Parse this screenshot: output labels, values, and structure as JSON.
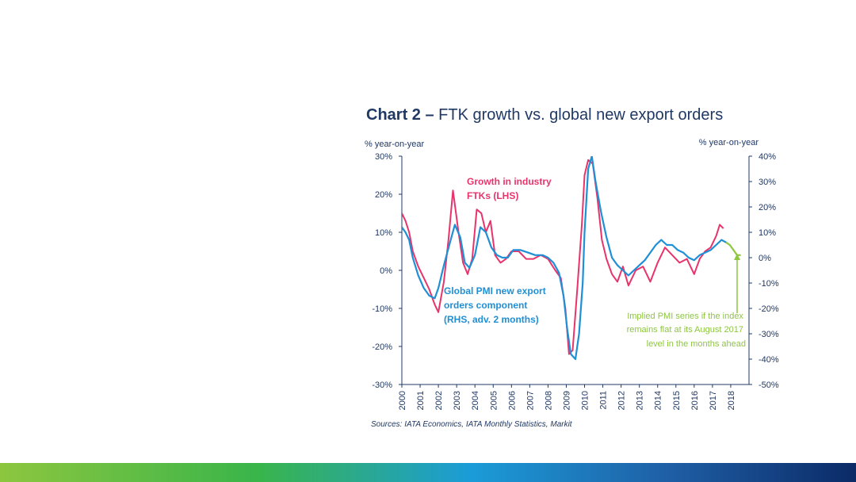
{
  "chart_data": {
    "type": "line",
    "title_bold": "Chart 2 –",
    "title_rest": " FTK growth vs. global new export orders",
    "ylabel_left": "% year-on-year",
    "ylabel_right": "% year-on-year",
    "ylim_left": [
      -30,
      30
    ],
    "ylim_right": [
      -50,
      40
    ],
    "xlim": [
      2000,
      2019
    ],
    "yticks_left": [
      "30%",
      "20%",
      "10%",
      "0%",
      "-10%",
      "-20%",
      "-30%"
    ],
    "yticks_right": [
      "40%",
      "30%",
      "20%",
      "10%",
      "0%",
      "-10%",
      "-20%",
      "-30%",
      "-40%",
      "-50%"
    ],
    "xticks": [
      "2000",
      "2001",
      "2002",
      "2003",
      "2004",
      "2005",
      "2006",
      "2007",
      "2008",
      "2009",
      "2010",
      "2011",
      "2012",
      "2013",
      "2014",
      "2015",
      "2016",
      "2017",
      "2018"
    ],
    "annotations": {
      "ftk_label": [
        "Growth in industry",
        "FTKs (LHS)"
      ],
      "pmi_label": [
        "Global PMI new export",
        "orders component",
        "(RHS, adv. 2 months)"
      ],
      "implied_label": [
        "Implied PMI series if the index",
        "remains flat at its August 2017",
        "level in the months ahead"
      ]
    },
    "source": "Sources: IATA Economics, IATA Monthly Statistics, Markit",
    "colors": {
      "ftk": "#e8336b",
      "pmi": "#1f8fd6",
      "implied": "#8dc63f",
      "axis": "#1f3864"
    },
    "series": [
      {
        "name": "Growth in industry FTKs (LHS)",
        "axis": "left",
        "x": [
          2000.0,
          2000.2,
          2000.4,
          2000.6,
          2000.9,
          2001.2,
          2001.5,
          2001.8,
          2002.0,
          2002.3,
          2002.55,
          2002.8,
          2003.1,
          2003.35,
          2003.6,
          2003.85,
          2004.1,
          2004.35,
          2004.6,
          2004.85,
          2005.1,
          2005.4,
          2005.7,
          2006.0,
          2006.4,
          2006.8,
          2007.2,
          2007.6,
          2008.0,
          2008.4,
          2008.7,
          2008.95,
          2009.15,
          2009.35,
          2009.6,
          2009.85,
          2010.0,
          2010.2,
          2010.45,
          2010.7,
          2010.95,
          2011.2,
          2011.5,
          2011.8,
          2012.1,
          2012.4,
          2012.8,
          2013.2,
          2013.6,
          2014.0,
          2014.4,
          2014.8,
          2015.2,
          2015.6,
          2016.0,
          2016.3,
          2016.6,
          2016.9,
          2017.2,
          2017.4,
          2017.6
        ],
        "y": [
          15,
          13,
          10,
          5,
          1,
          -2,
          -5,
          -9,
          -11,
          -3,
          8,
          21,
          10,
          2,
          -1,
          3,
          16,
          15,
          10,
          13,
          4,
          2,
          3,
          5,
          5,
          3,
          3,
          4,
          3,
          0,
          -2,
          -10,
          -22,
          -21,
          -5,
          12,
          25,
          29,
          28,
          19,
          8,
          3,
          -1,
          -3,
          1,
          -4,
          0,
          1,
          -3,
          2,
          6,
          4,
          2,
          3,
          -1,
          3,
          5,
          6,
          9,
          12,
          11
        ]
      },
      {
        "name": "Global PMI new export orders component (RHS, adv. 2 months)",
        "axis": "right",
        "x": [
          2000.0,
          2000.2,
          2000.4,
          2000.6,
          2000.9,
          2001.2,
          2001.5,
          2001.8,
          2002.0,
          2002.3,
          2002.6,
          2002.9,
          2003.2,
          2003.45,
          2003.7,
          2004.0,
          2004.3,
          2004.6,
          2004.9,
          2005.2,
          2005.5,
          2005.8,
          2006.1,
          2006.5,
          2006.9,
          2007.3,
          2007.7,
          2008.0,
          2008.3,
          2008.6,
          2008.85,
          2009.05,
          2009.25,
          2009.5,
          2009.7,
          2009.9,
          2010.0,
          2010.2,
          2010.4,
          2010.6,
          2010.9,
          2011.2,
          2011.5,
          2011.8,
          2012.1,
          2012.4,
          2012.7,
          2013.0,
          2013.3,
          2013.6,
          2013.9,
          2014.2,
          2014.5,
          2014.8,
          2015.1,
          2015.4,
          2015.7,
          2016.0,
          2016.3,
          2016.6,
          2016.9,
          2017.2,
          2017.5,
          2017.75
        ],
        "y": [
          12,
          10,
          7,
          0,
          -7,
          -12,
          -15,
          -16,
          -12,
          -3,
          5,
          13,
          8,
          -2,
          -4,
          1,
          12,
          10,
          4,
          1,
          0,
          0,
          3,
          3,
          2,
          1,
          1,
          0,
          -2,
          -6,
          -15,
          -28,
          -38,
          -40,
          -30,
          -10,
          10,
          35,
          40,
          30,
          18,
          8,
          0,
          -3,
          -5,
          -7,
          -5,
          -3,
          -1,
          2,
          5,
          7,
          5,
          5,
          3,
          2,
          0,
          -1,
          1,
          2,
          3,
          5,
          7,
          6
        ]
      },
      {
        "name": "Implied PMI series",
        "axis": "right",
        "x": [
          2017.75,
          2017.95,
          2018.15,
          2018.35,
          2018.55
        ],
        "y": [
          6,
          5,
          3,
          1,
          1
        ]
      }
    ]
  }
}
